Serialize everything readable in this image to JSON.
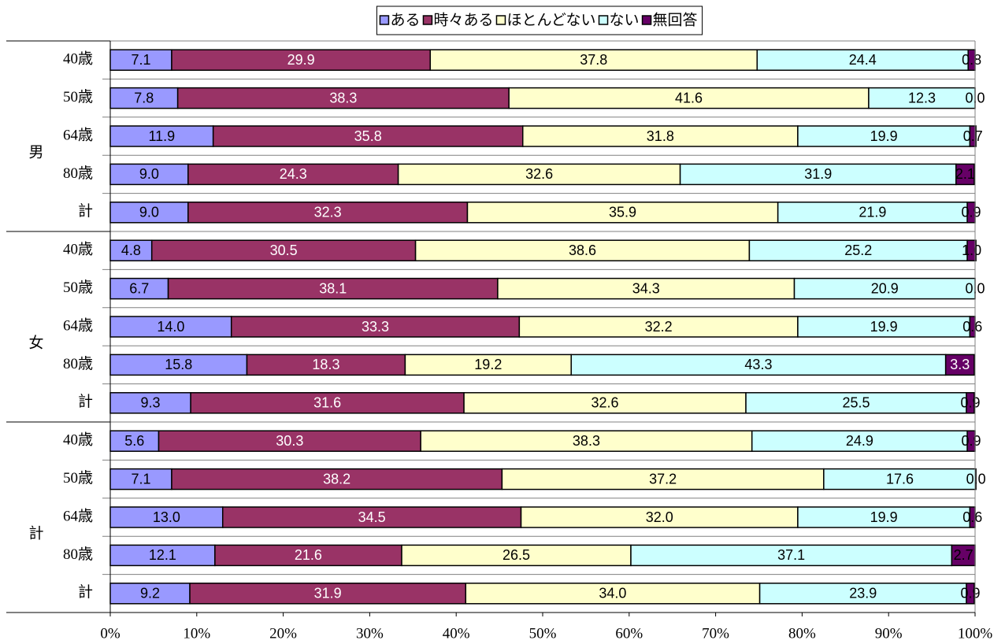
{
  "chart_data": {
    "type": "stacked_bar_horizontal",
    "categories": [
      "40歳",
      "50歳",
      "64歳",
      "80歳",
      "計",
      "40歳",
      "50歳",
      "64歳",
      "80歳",
      "計",
      "40歳",
      "50歳",
      "64歳",
      "80歳",
      "計"
    ],
    "category_groups": [
      "男",
      "女",
      "計"
    ],
    "series": [
      {
        "name": "ある",
        "color": "#9999ff",
        "values": [
          7.1,
          7.8,
          11.9,
          9.0,
          9.0,
          4.8,
          6.7,
          14.0,
          15.8,
          9.3,
          5.6,
          7.1,
          13.0,
          12.1,
          9.2
        ],
        "value_labels": [
          "7.1",
          "7.8",
          "11.9",
          "9.0",
          "9.0",
          "4.8",
          "6.7",
          "14.0",
          "15.8",
          "9.3",
          "5.6",
          "7.1",
          "13.0",
          "12.1",
          "9.2"
        ]
      },
      {
        "name": "時々ある",
        "color": "#993366",
        "values": [
          29.9,
          38.3,
          35.8,
          24.3,
          32.3,
          30.5,
          38.1,
          33.3,
          18.3,
          31.6,
          30.3,
          38.2,
          34.5,
          21.6,
          31.9
        ],
        "value_labels": [
          "29.9",
          "38.3",
          "35.8",
          "24.3",
          "32.3",
          "30.5",
          "38.1",
          "33.3",
          "18.3",
          "31.6",
          "30.3",
          "38.2",
          "34.5",
          "21.6",
          "31.9"
        ]
      },
      {
        "name": "ほとんどない",
        "color": "#ffffcc",
        "values": [
          37.8,
          41.6,
          31.8,
          32.6,
          35.9,
          38.6,
          34.3,
          32.2,
          19.2,
          32.6,
          38.3,
          37.2,
          32.0,
          26.5,
          34.0
        ],
        "value_labels": [
          "37.8",
          "41.6",
          "31.8",
          "32.6",
          "35.9",
          "38.6",
          "34.3",
          "32.2",
          "19.2",
          "32.6",
          "38.3",
          "37.2",
          "32.0",
          "26.5",
          "34.0"
        ]
      },
      {
        "name": "ない",
        "color": "#ccffff",
        "values": [
          24.4,
          12.3,
          19.9,
          31.9,
          21.9,
          25.2,
          20.9,
          19.9,
          43.3,
          25.5,
          24.9,
          17.6,
          19.9,
          37.1,
          23.9
        ],
        "value_labels": [
          "24.4",
          "12.3",
          "19.9",
          "31.9",
          "21.9",
          "25.2",
          "20.9",
          "19.9",
          "43.3",
          "25.5",
          "24.9",
          "17.6",
          "19.9",
          "37.1",
          "23.9"
        ]
      },
      {
        "name": "無回答",
        "color": "#660066",
        "values": [
          0.8,
          0.0,
          0.7,
          2.1,
          0.9,
          1.0,
          0.0,
          0.6,
          3.3,
          0.9,
          0.9,
          0.0,
          0.6,
          2.7,
          0.9
        ],
        "value_labels": [
          "0.8",
          "0.0",
          "0.7",
          "2.1",
          "0.9",
          "1.0",
          "0.0",
          "0.6",
          "3.3",
          "0.9",
          "0.9",
          "0.0",
          "0.6",
          "2.7",
          "0.9"
        ]
      }
    ],
    "xlim": [
      0,
      100
    ],
    "xticks": [
      {
        "value": 0,
        "label": "0%"
      },
      {
        "value": 10,
        "label": "10%"
      },
      {
        "value": 20,
        "label": "20%"
      },
      {
        "value": 30,
        "label": "30%"
      },
      {
        "value": 40,
        "label": "40%"
      },
      {
        "value": 50,
        "label": "50%"
      },
      {
        "value": 60,
        "label": "60%"
      },
      {
        "value": 70,
        "label": "70%"
      },
      {
        "value": 80,
        "label": "80%"
      },
      {
        "value": 90,
        "label": "90%"
      },
      {
        "value": 100,
        "label": "100%"
      }
    ],
    "legend": "top"
  }
}
